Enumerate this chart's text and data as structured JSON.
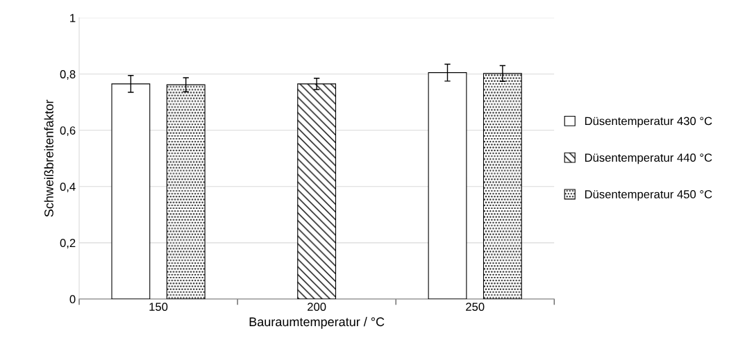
{
  "chart_data": {
    "type": "bar",
    "xlabel": "Bauraumtemperatur / °C",
    "ylabel": "Schweißbreitenfaktor",
    "categories": [
      "150",
      "200",
      "250"
    ],
    "series": [
      {
        "name": "Düsentemperatur 430 °C",
        "color": "#000000",
        "values": [
          0.765,
          null,
          0.805
        ],
        "errors": [
          0.03,
          null,
          0.03
        ]
      },
      {
        "name": "Düsentemperatur 440 °C",
        "color": "#000000",
        "values": [
          null,
          0.765,
          null
        ],
        "errors": [
          null,
          0.02,
          null
        ]
      },
      {
        "name": "Düsentemperatur 450 °C",
        "color": "#000000",
        "values": [
          0.762,
          null,
          0.802
        ],
        "errors": [
          0.025,
          null,
          0.028
        ]
      }
    ],
    "ylim": [
      0,
      1
    ],
    "yticks": [
      {
        "value": 0,
        "label": "0"
      },
      {
        "value": 0.2,
        "label": "0,2"
      },
      {
        "value": 0.4,
        "label": "0,4"
      },
      {
        "value": 0.6,
        "label": "0,6"
      },
      {
        "value": 0.8,
        "label": "0,8"
      },
      {
        "value": 1,
        "label": "1"
      }
    ],
    "grid": "y",
    "legend": "right"
  }
}
